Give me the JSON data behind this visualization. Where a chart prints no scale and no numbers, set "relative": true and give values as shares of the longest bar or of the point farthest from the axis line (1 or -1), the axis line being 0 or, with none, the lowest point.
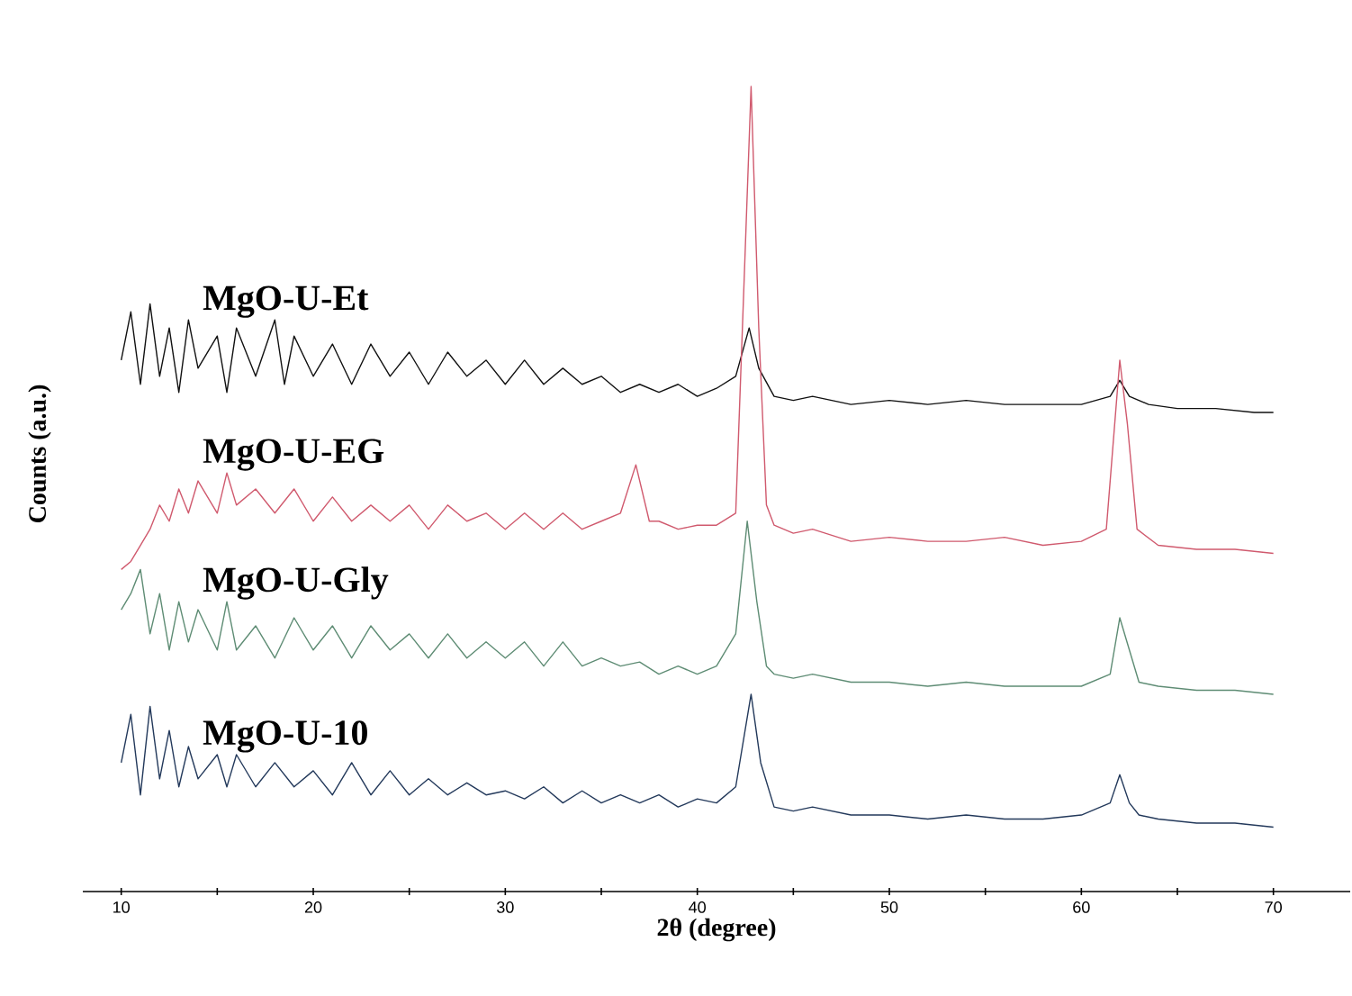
{
  "chart_data": {
    "type": "line",
    "relative": true,
    "xlabel": "2θ (degree)",
    "ylabel": "Counts (a.u.)",
    "xlim": [
      8,
      74
    ],
    "xticks": [
      10,
      {
        "value": 15,
        "label": null
      },
      20,
      {
        "value": 25,
        "label": null
      },
      30,
      {
        "value": 35,
        "label": null
      },
      40,
      {
        "value": 45,
        "label": null
      },
      50,
      {
        "value": 55,
        "label": null
      },
      60,
      {
        "value": 65,
        "label": null
      },
      70
    ],
    "grid": false,
    "marker": "none",
    "line_style": "solid",
    "series": [
      {
        "name": "MgO-U-Et",
        "color": "#111111",
        "x": [
          10,
          10.5,
          11,
          11.5,
          12,
          12.5,
          13,
          13.5,
          14,
          15,
          15.5,
          16,
          17,
          18,
          18.5,
          19,
          20,
          21,
          22,
          23,
          24,
          25,
          26,
          27,
          28,
          29,
          30,
          31,
          32,
          33,
          34,
          35,
          36,
          37,
          38,
          39,
          40,
          41,
          42,
          42.7,
          43.2,
          44,
          45,
          46,
          48,
          50,
          52,
          54,
          56,
          58,
          60,
          61.5,
          62,
          62.5,
          63.5,
          65,
          67,
          69,
          70
        ],
        "values": [
          0.66,
          0.72,
          0.63,
          0.73,
          0.64,
          0.7,
          0.62,
          0.71,
          0.65,
          0.69,
          0.62,
          0.7,
          0.64,
          0.71,
          0.63,
          0.69,
          0.64,
          0.68,
          0.63,
          0.68,
          0.64,
          0.67,
          0.63,
          0.67,
          0.64,
          0.66,
          0.63,
          0.66,
          0.63,
          0.65,
          0.63,
          0.64,
          0.62,
          0.63,
          0.62,
          0.63,
          0.615,
          0.625,
          0.64,
          0.7,
          0.65,
          0.615,
          0.61,
          0.615,
          0.605,
          0.61,
          0.605,
          0.61,
          0.605,
          0.605,
          0.605,
          0.615,
          0.635,
          0.615,
          0.605,
          0.6,
          0.6,
          0.595,
          0.595
        ]
      },
      {
        "name": "MgO-U-EG",
        "color": "#d05a6e",
        "x": [
          10,
          10.5,
          11,
          11.5,
          12,
          12.5,
          13,
          13.5,
          14,
          15,
          15.5,
          16,
          17,
          18,
          19,
          20,
          21,
          22,
          23,
          24,
          25,
          26,
          27,
          28,
          29,
          30,
          31,
          32,
          33,
          34,
          35,
          36,
          36.8,
          37.5,
          38,
          39,
          40,
          41,
          42,
          42.5,
          42.8,
          43.2,
          43.6,
          44,
          45,
          46,
          48,
          50,
          52,
          54,
          56,
          58,
          60,
          61.3,
          61.8,
          62,
          62.4,
          62.9,
          64,
          66,
          68,
          70
        ],
        "values": [
          0.4,
          0.41,
          0.43,
          0.45,
          0.48,
          0.46,
          0.5,
          0.47,
          0.51,
          0.47,
          0.52,
          0.48,
          0.5,
          0.47,
          0.5,
          0.46,
          0.49,
          0.46,
          0.48,
          0.46,
          0.48,
          0.45,
          0.48,
          0.46,
          0.47,
          0.45,
          0.47,
          0.45,
          0.47,
          0.45,
          0.46,
          0.47,
          0.53,
          0.46,
          0.46,
          0.45,
          0.455,
          0.455,
          0.47,
          0.8,
          1.0,
          0.7,
          0.48,
          0.455,
          0.445,
          0.45,
          0.435,
          0.44,
          0.435,
          0.435,
          0.44,
          0.43,
          0.435,
          0.45,
          0.6,
          0.66,
          0.58,
          0.45,
          0.43,
          0.425,
          0.425,
          0.42
        ]
      },
      {
        "name": "MgO-U-Gly",
        "color": "#5e8c74",
        "x": [
          10,
          10.5,
          11,
          11.5,
          12,
          12.5,
          13,
          13.5,
          14,
          15,
          15.5,
          16,
          17,
          18,
          19,
          20,
          21,
          22,
          23,
          24,
          25,
          26,
          27,
          28,
          29,
          30,
          31,
          32,
          33,
          34,
          35,
          36,
          37,
          38,
          39,
          40,
          41,
          42,
          42.6,
          43.1,
          43.6,
          44,
          45,
          46,
          48,
          50,
          52,
          54,
          56,
          58,
          60,
          61.5,
          62,
          62.5,
          63,
          64,
          66,
          68,
          70
        ],
        "values": [
          0.35,
          0.37,
          0.4,
          0.32,
          0.37,
          0.3,
          0.36,
          0.31,
          0.35,
          0.3,
          0.36,
          0.3,
          0.33,
          0.29,
          0.34,
          0.3,
          0.33,
          0.29,
          0.33,
          0.3,
          0.32,
          0.29,
          0.32,
          0.29,
          0.31,
          0.29,
          0.31,
          0.28,
          0.31,
          0.28,
          0.29,
          0.28,
          0.285,
          0.27,
          0.28,
          0.27,
          0.28,
          0.32,
          0.46,
          0.36,
          0.28,
          0.27,
          0.265,
          0.27,
          0.26,
          0.26,
          0.255,
          0.26,
          0.255,
          0.255,
          0.255,
          0.27,
          0.34,
          0.3,
          0.26,
          0.255,
          0.25,
          0.25,
          0.245
        ]
      },
      {
        "name": "MgO-U-10",
        "color": "#23395b",
        "x": [
          10,
          10.5,
          11,
          11.5,
          12,
          12.5,
          13,
          13.5,
          14,
          15,
          15.5,
          16,
          17,
          18,
          19,
          20,
          21,
          22,
          23,
          24,
          25,
          26,
          27,
          28,
          29,
          30,
          31,
          32,
          33,
          34,
          35,
          36,
          37,
          38,
          39,
          40,
          41,
          42,
          42.8,
          43.3,
          44,
          45,
          46,
          48,
          50,
          52,
          54,
          56,
          58,
          60,
          61.5,
          62,
          62.5,
          63,
          64,
          66,
          68,
          70
        ],
        "values": [
          0.16,
          0.22,
          0.12,
          0.23,
          0.14,
          0.2,
          0.13,
          0.18,
          0.14,
          0.17,
          0.13,
          0.17,
          0.13,
          0.16,
          0.13,
          0.15,
          0.12,
          0.16,
          0.12,
          0.15,
          0.12,
          0.14,
          0.12,
          0.135,
          0.12,
          0.125,
          0.115,
          0.13,
          0.11,
          0.125,
          0.11,
          0.12,
          0.11,
          0.12,
          0.105,
          0.115,
          0.11,
          0.13,
          0.245,
          0.16,
          0.105,
          0.1,
          0.105,
          0.095,
          0.095,
          0.09,
          0.095,
          0.09,
          0.09,
          0.095,
          0.11,
          0.145,
          0.11,
          0.095,
          0.09,
          0.085,
          0.085,
          0.08
        ]
      }
    ]
  }
}
